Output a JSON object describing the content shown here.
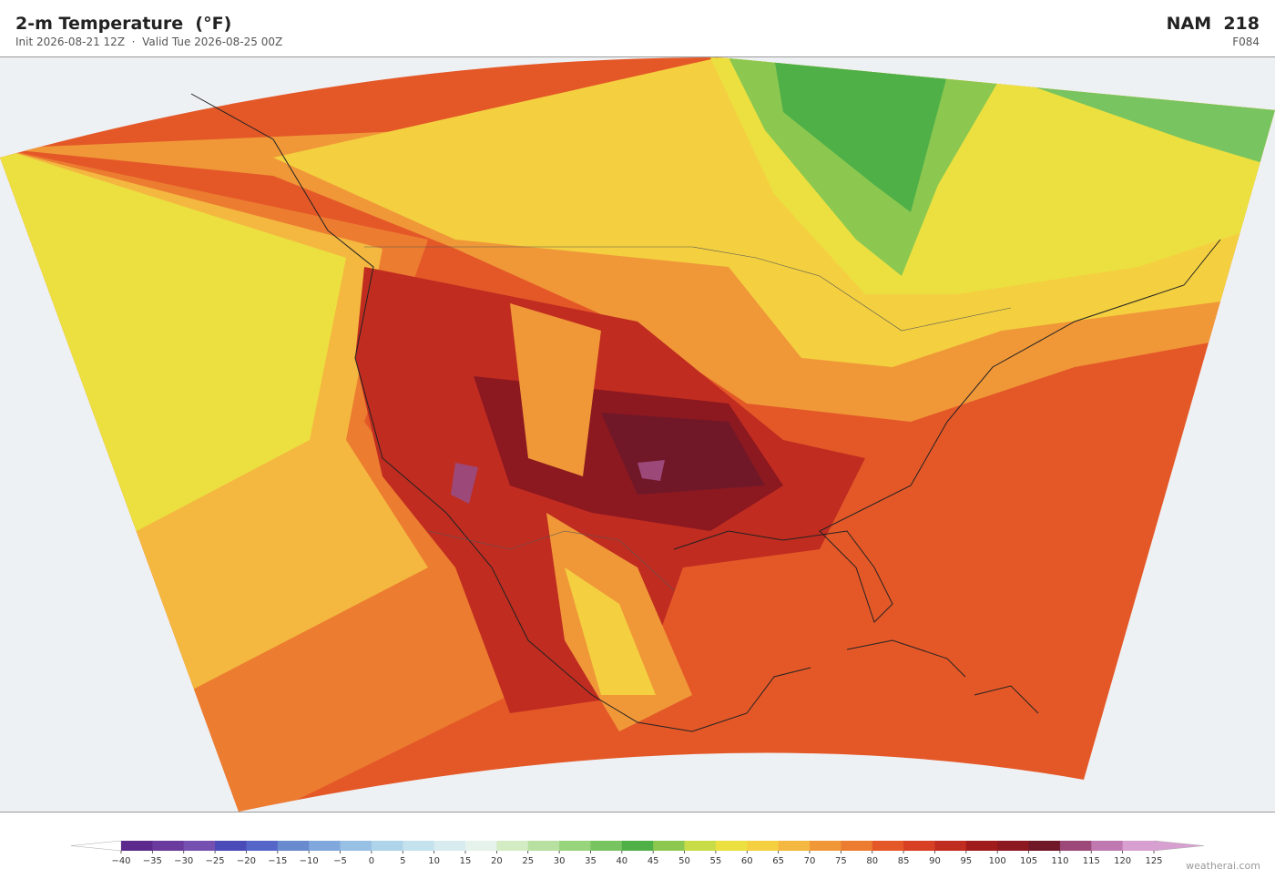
{
  "header": {
    "title": "2-m Temperature  (°F)",
    "subtitle": "Init 2026-08-21 12Z  ·  Valid Tue 2026-08-25 00Z",
    "model": "NAM  218",
    "forecast_hour": "F084"
  },
  "colorbar": {
    "ticks": [
      {
        "value": -40,
        "label": "−40"
      },
      {
        "value": -35,
        "label": "−35"
      },
      {
        "value": -30,
        "label": "−30"
      },
      {
        "value": -25,
        "label": "−25"
      },
      {
        "value": -20,
        "label": "−20"
      },
      {
        "value": -15,
        "label": "−15"
      },
      {
        "value": -10,
        "label": "−10"
      },
      {
        "value": -5,
        "label": "−5"
      },
      0,
      5,
      10,
      15,
      20,
      25,
      30,
      35,
      40,
      45,
      50,
      55,
      60,
      65,
      70,
      75,
      80,
      85,
      90,
      95,
      100,
      105,
      110,
      115,
      120,
      125
    ],
    "colors": [
      "#5b2a8c",
      "#6a3a9c",
      "#7650b0",
      "#4a4ab8",
      "#5566c8",
      "#6a8ad0",
      "#80a8dc",
      "#98c0e4",
      "#aed4ea",
      "#c4e2ee",
      "#d8ecf0",
      "#e6f2ec",
      "#d4ecc4",
      "#b8e0a0",
      "#98d47c",
      "#78c460",
      "#50b048",
      "#8cc850",
      "#c8dc48",
      "#ece040",
      "#f4d040",
      "#f4b840",
      "#f09838",
      "#ec7c30",
      "#e45828",
      "#d84024",
      "#c02c20",
      "#a01c1c",
      "#8c1820",
      "#701828",
      "#9c4878",
      "#c078b0",
      "#d8a0d0"
    ],
    "under_color": "#ffffff",
    "over_color": "#d8a0d0"
  },
  "watermark": "weatherai.com"
}
